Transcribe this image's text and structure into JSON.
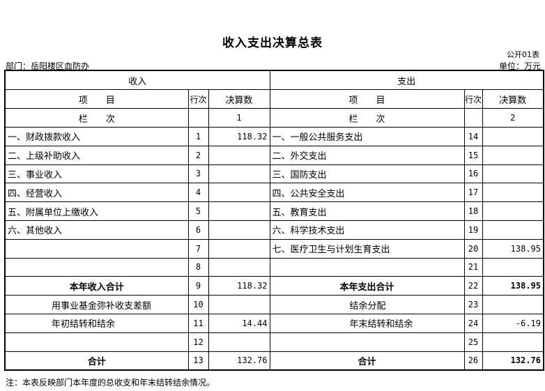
{
  "title": "收入支出决算总表",
  "form_code": "公开01表",
  "department": "部门：岳阳楼区血防办",
  "unit": "单位：万元",
  "income_header": "收入",
  "expense_header": "支出",
  "col_item": "项　　目",
  "col_line": "行次",
  "col_amount": "决算数",
  "col_index_label": "栏　　次",
  "income_col_index": "1",
  "expense_col_index": "2",
  "rows": [
    {
      "in_item": "一、财政拨款收入",
      "in_line": "1",
      "in_amt": "118.32",
      "ex_item": "一、一般公共服务支出",
      "ex_line": "14",
      "ex_amt": ""
    },
    {
      "in_item": "二、上级补助收入",
      "in_line": "2",
      "in_amt": "",
      "ex_item": "二、外交支出",
      "ex_line": "15",
      "ex_amt": ""
    },
    {
      "in_item": "三、事业收入",
      "in_line": "3",
      "in_amt": "",
      "ex_item": "三、国防支出",
      "ex_line": "16",
      "ex_amt": ""
    },
    {
      "in_item": "四、经营收入",
      "in_line": "4",
      "in_amt": "",
      "ex_item": "四、公共安全支出",
      "ex_line": "17",
      "ex_amt": ""
    },
    {
      "in_item": "五、附属单位上缴收入",
      "in_line": "5",
      "in_amt": "",
      "ex_item": "五、教育支出",
      "ex_line": "18",
      "ex_amt": ""
    },
    {
      "in_item": "六、其他收入",
      "in_line": "6",
      "in_amt": "",
      "ex_item": "六、科学技术支出",
      "ex_line": "19",
      "ex_amt": ""
    },
    {
      "in_item": "",
      "in_line": "7",
      "in_amt": "",
      "ex_item": "七、医疗卫生与计划生育支出",
      "ex_line": "20",
      "ex_amt": "138.95"
    },
    {
      "in_item": "",
      "in_line": "8",
      "in_amt": "",
      "ex_item": "",
      "ex_line": "21",
      "ex_amt": ""
    },
    {
      "in_item": "本年收入合计",
      "in_line": "9",
      "in_amt": "118.32",
      "ex_item": "本年支出合计",
      "ex_line": "22",
      "ex_amt": "138.95"
    },
    {
      "in_item": "用事业基金弥补收支差额",
      "in_line": "10",
      "in_amt": "",
      "ex_item": "结余分配",
      "ex_line": "23",
      "ex_amt": ""
    },
    {
      "in_item": "年初结转和结余",
      "in_line": "11",
      "in_amt": "14.44",
      "ex_item": "年末结转和结余",
      "ex_line": "24",
      "ex_amt": "-6.19"
    },
    {
      "in_item": "",
      "in_line": "12",
      "in_amt": "",
      "ex_item": "",
      "ex_line": "25",
      "ex_amt": ""
    },
    {
      "in_item": "合计",
      "in_line": "13",
      "in_amt": "132.76",
      "ex_item": "合计",
      "ex_line": "26",
      "ex_amt": "132.76"
    }
  ],
  "note": "注：本表反映部门本年度的总收支和年末结转结余情况。"
}
